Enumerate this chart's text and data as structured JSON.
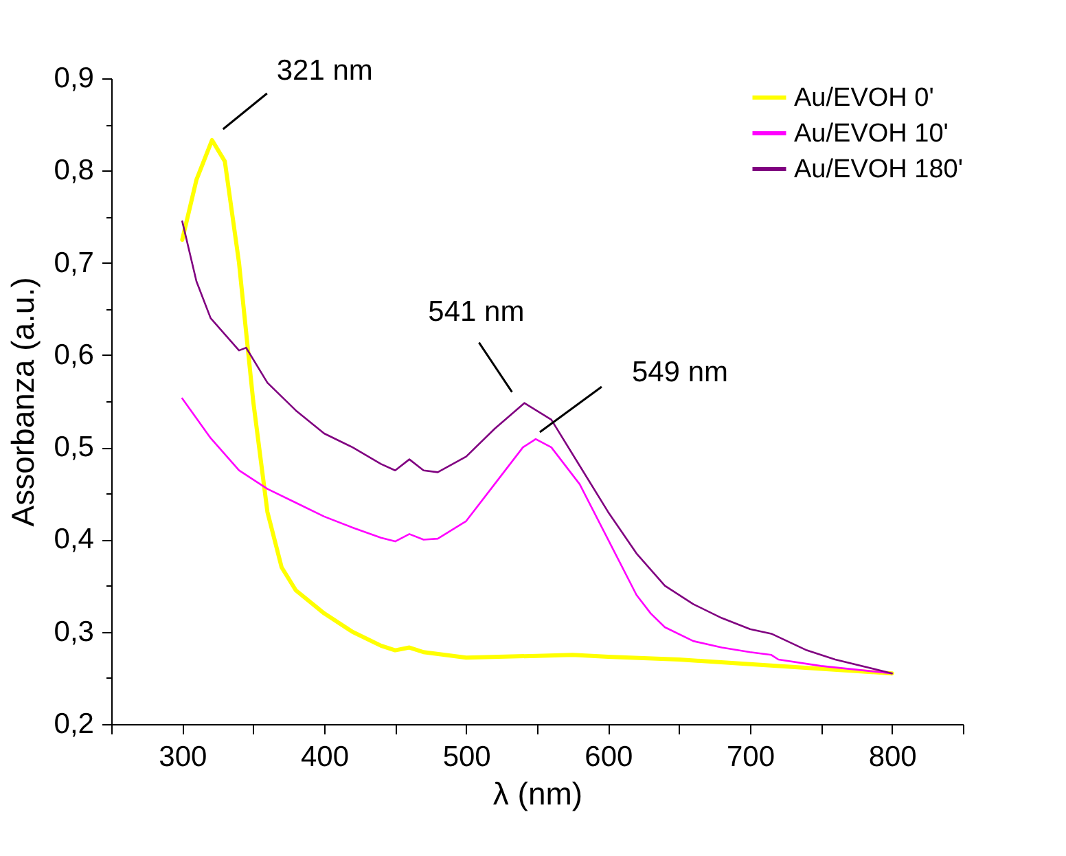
{
  "chart_data": {
    "type": "line",
    "xlabel": "λ (nm)",
    "ylabel": "Assorbanza (a.u.)",
    "xlim": [
      250,
      850
    ],
    "ylim": [
      0.2,
      0.9
    ],
    "xticks": [
      {
        "value": 250,
        "label": null
      },
      300,
      {
        "value": 350,
        "label": null
      },
      400,
      {
        "value": 450,
        "label": null
      },
      500,
      {
        "value": 550,
        "label": null
      },
      600,
      {
        "value": 650,
        "label": null
      },
      700,
      {
        "value": 750,
        "label": null
      },
      800,
      {
        "value": 850,
        "label": null
      }
    ],
    "yticks": [
      {
        "value": 0.2,
        "label": "0,2"
      },
      {
        "value": 0.25,
        "label": null
      },
      {
        "value": 0.3,
        "label": "0,3"
      },
      {
        "value": 0.35,
        "label": null
      },
      {
        "value": 0.4,
        "label": "0,4"
      },
      {
        "value": 0.45,
        "label": null
      },
      {
        "value": 0.5,
        "label": "0,5"
      },
      {
        "value": 0.55,
        "label": null
      },
      {
        "value": 0.6,
        "label": "0,6"
      },
      {
        "value": 0.65,
        "label": null
      },
      {
        "value": 0.7,
        "label": "0,7"
      },
      {
        "value": 0.75,
        "label": null
      },
      {
        "value": 0.8,
        "label": "0,8"
      },
      {
        "value": 0.85,
        "label": null
      },
      {
        "value": 0.9,
        "label": "0,9"
      }
    ],
    "grid": false,
    "legend": "top right",
    "marker": "none",
    "line_style": "solid",
    "series": [
      {
        "name": "Au/EVOH 0'",
        "color": "#ffff00",
        "x": [
          300,
          310,
          321,
          330,
          340,
          350,
          360,
          370,
          380,
          400,
          420,
          440,
          450,
          460,
          470,
          500,
          550,
          575,
          600,
          650,
          700,
          750,
          800
        ],
        "values": [
          0.725,
          0.79,
          0.833,
          0.81,
          0.7,
          0.55,
          0.43,
          0.37,
          0.345,
          0.32,
          0.3,
          0.285,
          0.28,
          0.283,
          0.278,
          0.272,
          0.274,
          0.275,
          0.273,
          0.27,
          0.265,
          0.26,
          0.255
        ]
      },
      {
        "name": "Au/EVOH 10'",
        "color": "#ff00ff",
        "x": [
          300,
          320,
          340,
          360,
          380,
          400,
          420,
          440,
          450,
          460,
          470,
          480,
          500,
          520,
          540,
          549,
          560,
          580,
          600,
          620,
          630,
          640,
          660,
          680,
          700,
          715,
          720,
          750,
          800
        ],
        "values": [
          0.553,
          0.51,
          0.475,
          0.455,
          0.44,
          0.425,
          0.413,
          0.402,
          0.398,
          0.406,
          0.4,
          0.401,
          0.42,
          0.46,
          0.5,
          0.509,
          0.5,
          0.46,
          0.4,
          0.34,
          0.32,
          0.305,
          0.29,
          0.283,
          0.278,
          0.275,
          0.27,
          0.263,
          0.255
        ]
      },
      {
        "name": "Au/EVOH 180'",
        "color": "#800080",
        "x": [
          300,
          310,
          320,
          340,
          345,
          360,
          380,
          400,
          420,
          440,
          450,
          460,
          470,
          480,
          500,
          520,
          541,
          560,
          580,
          600,
          620,
          640,
          660,
          680,
          700,
          715,
          740,
          760,
          800
        ],
        "values": [
          0.745,
          0.68,
          0.64,
          0.605,
          0.608,
          0.57,
          0.54,
          0.515,
          0.5,
          0.482,
          0.475,
          0.487,
          0.475,
          0.473,
          0.49,
          0.52,
          0.548,
          0.53,
          0.48,
          0.43,
          0.385,
          0.35,
          0.33,
          0.315,
          0.303,
          0.298,
          0.28,
          0.27,
          0.255
        ]
      }
    ],
    "annotations": [
      {
        "text": "321 nm",
        "x": 321,
        "y": 0.833
      },
      {
        "text": "541 nm",
        "x": 541,
        "y": 0.548
      },
      {
        "text": "549 nm",
        "x": 549,
        "y": 0.509
      }
    ]
  }
}
